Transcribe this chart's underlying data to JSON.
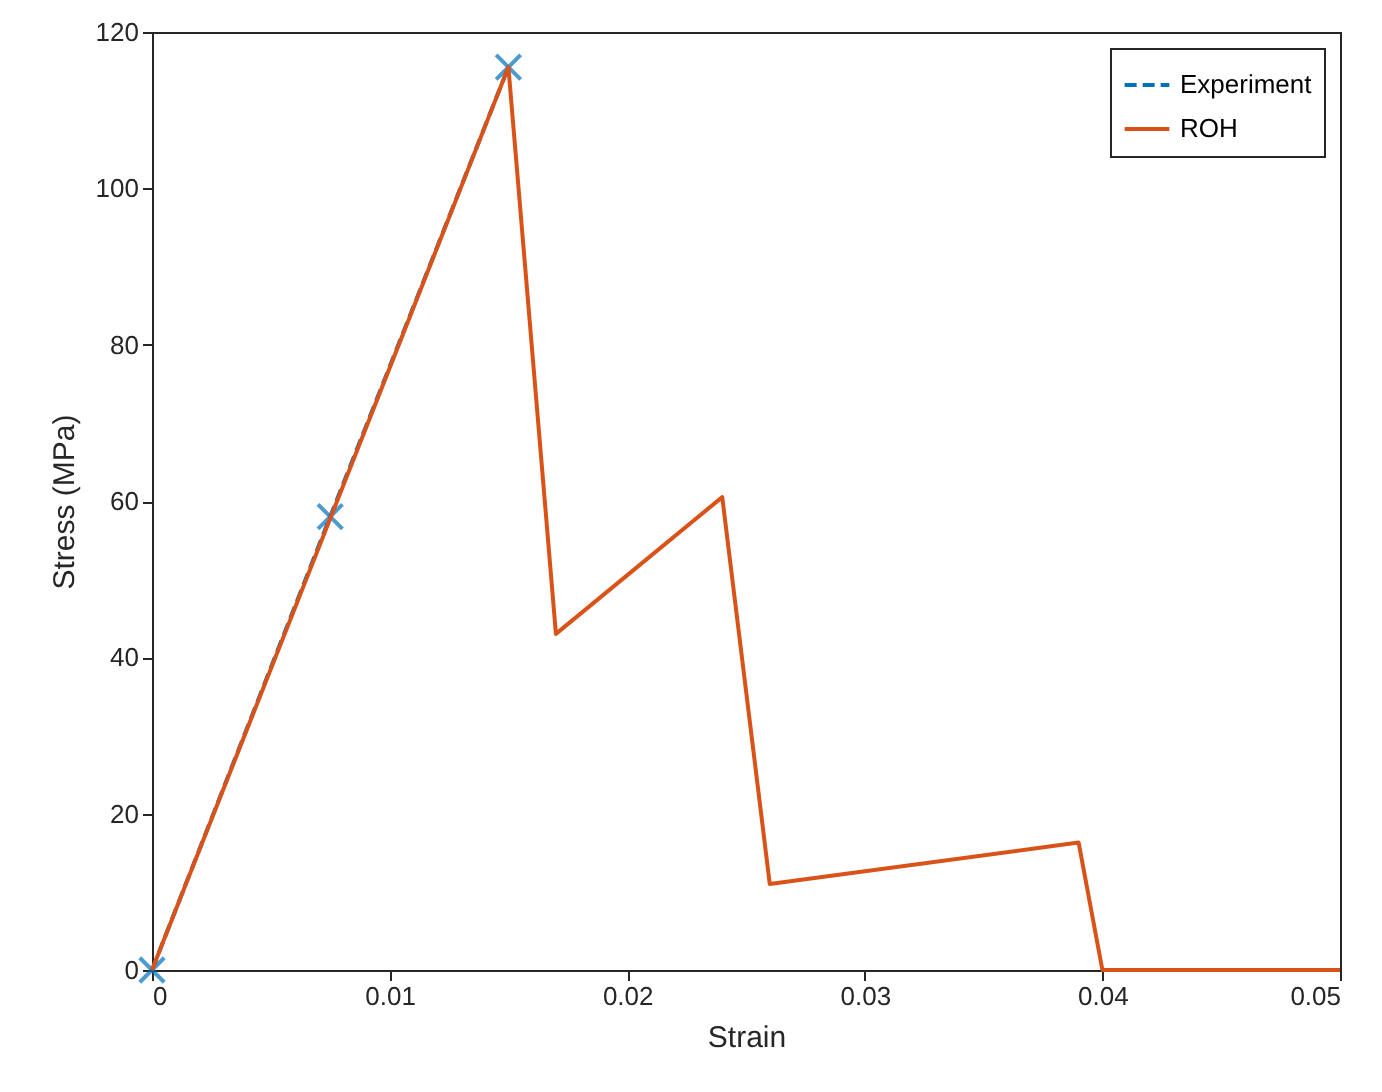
{
  "chart_data": {
    "type": "line",
    "xlabel": "Strain",
    "ylabel": "Stress (MPa)",
    "xlim": [
      0,
      0.05
    ],
    "xticks": [
      0,
      0.01,
      0.02,
      0.03,
      0.04,
      0.05
    ],
    "ylim": [
      0,
      120
    ],
    "yticks": [
      0,
      20,
      40,
      60,
      80,
      100,
      120
    ],
    "grid": false,
    "legend": "top right",
    "series": [
      {
        "name": "Experiment",
        "color": "#0072bd",
        "x": [
          0,
          0.0075,
          0.015
        ],
        "values": [
          0,
          58,
          115.5
        ],
        "marker": "cross",
        "line_style": "dashed"
      },
      {
        "name": "ROH",
        "color": "#d95319",
        "x": [
          0,
          0.015,
          0.017,
          0.024,
          0.026,
          0.039,
          0.04,
          0.05
        ],
        "values": [
          0,
          115.5,
          43,
          60.5,
          11,
          16.3,
          0,
          0
        ],
        "marker": "none",
        "line_style": "solid"
      }
    ]
  }
}
